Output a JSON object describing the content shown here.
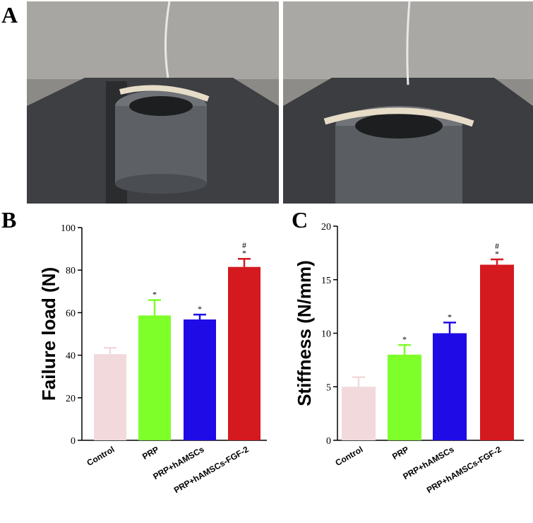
{
  "panel_labels": [
    "A",
    "B",
    "C"
  ],
  "chart_data": [
    {
      "type": "bar",
      "ylabel": "Failure load (N)",
      "categories": [
        "Control",
        "PRP",
        "PRP+hAMSCs",
        "PRP+hAMSCs-FGF-2"
      ],
      "values": [
        40.5,
        58.7,
        56.8,
        81.5
      ],
      "errors": [
        3,
        7.2,
        2.3,
        3.8
      ],
      "colors": [
        "#f2d9dc",
        "#7fff2a",
        "#1f0be6",
        "#d4191f"
      ],
      "annotations": [
        [],
        [
          "*"
        ],
        [
          "*"
        ],
        [
          "#",
          "*"
        ]
      ],
      "ylim": [
        0,
        100
      ],
      "yticks": [
        0,
        20,
        40,
        60,
        80,
        100
      ]
    },
    {
      "type": "bar",
      "ylabel": "Stiffness (N/mm)",
      "categories": [
        "Control",
        "PRP",
        "PRP+hAMSCs",
        "PRP+hAMSCs-FGF-2"
      ],
      "values": [
        5.0,
        8.0,
        10.0,
        16.4
      ],
      "errors": [
        0.9,
        0.9,
        1.0,
        0.5
      ],
      "colors": [
        "#f2d9dc",
        "#7fff2a",
        "#1f0be6",
        "#d4191f"
      ],
      "annotations": [
        [],
        [
          "*"
        ],
        [
          "*"
        ],
        [
          "#",
          "*"
        ]
      ],
      "ylim": [
        0,
        20
      ],
      "yticks": [
        0,
        5,
        10,
        15,
        20
      ]
    }
  ]
}
